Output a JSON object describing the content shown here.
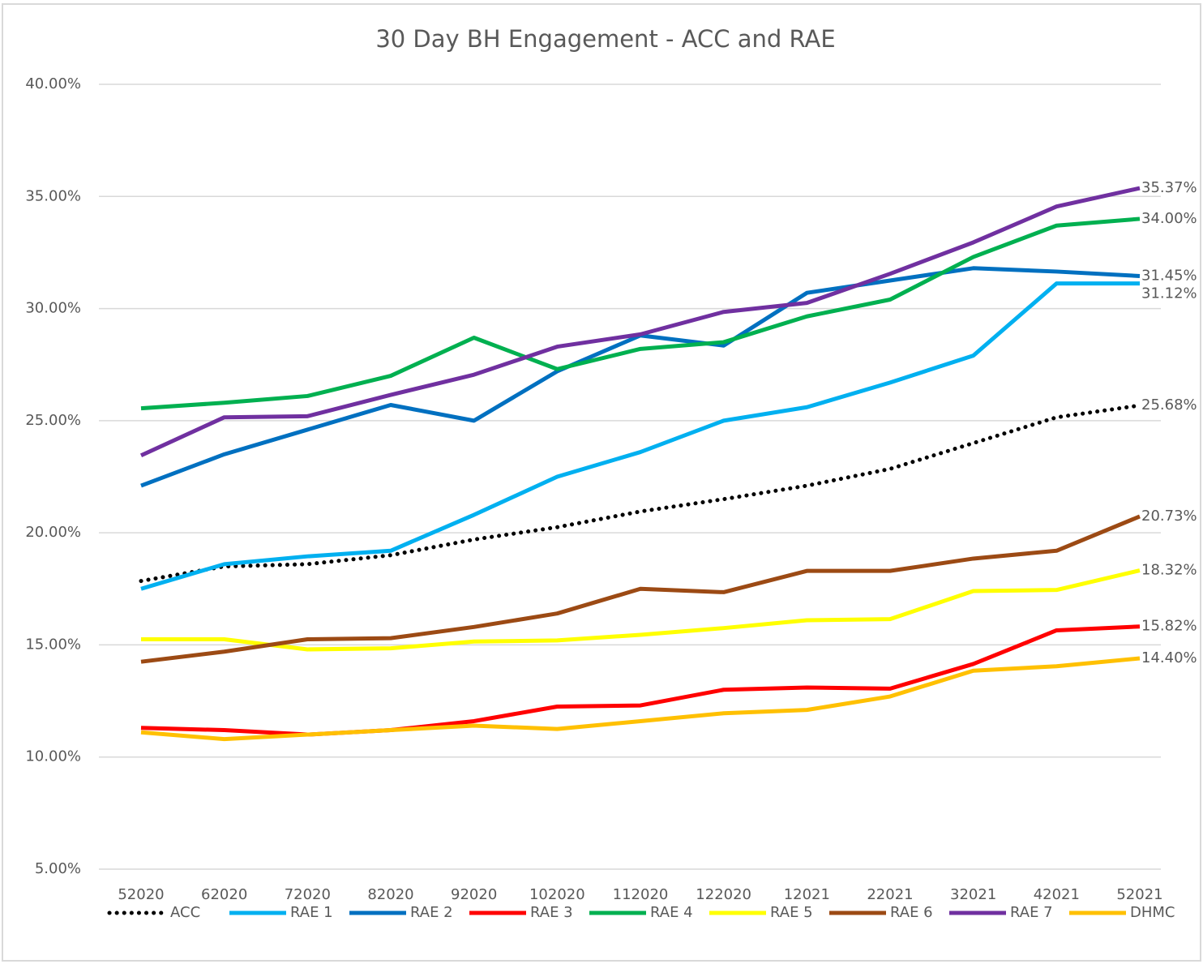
{
  "chart_data": {
    "type": "line",
    "title": "30 Day BH Engagement - ACC and RAE",
    "categories": [
      "52020",
      "62020",
      "72020",
      "82020",
      "92020",
      "102020",
      "112020",
      "122020",
      "12021",
      "22021",
      "32021",
      "42021",
      "52021"
    ],
    "ylim": [
      5,
      40
    ],
    "yticks": [
      {
        "value": 5,
        "label": "5.00%"
      },
      {
        "value": 10,
        "label": "10.00%"
      },
      {
        "value": 15,
        "label": "15.00%"
      },
      {
        "value": 20,
        "label": "20.00%"
      },
      {
        "value": 25,
        "label": "25.00%"
      },
      {
        "value": 30,
        "label": "30.00%"
      },
      {
        "value": 35,
        "label": "35.00%"
      },
      {
        "value": 40,
        "label": "40.00%"
      }
    ],
    "grid": true,
    "legend": "bottom",
    "series": [
      {
        "name": "ACC",
        "color": "#000000",
        "style": "dotted",
        "values": [
          17.85,
          18.5,
          18.6,
          19.0,
          19.7,
          20.25,
          20.95,
          21.5,
          22.1,
          22.85,
          24.0,
          25.15,
          25.68
        ],
        "value_labels": [
          null,
          null,
          null,
          null,
          null,
          null,
          null,
          null,
          null,
          null,
          null,
          null,
          "25.68%"
        ]
      },
      {
        "name": "RAE 1",
        "color": "#00b0f0",
        "values": [
          17.5,
          18.6,
          18.95,
          19.2,
          20.8,
          22.5,
          23.6,
          25.0,
          25.6,
          26.7,
          27.9,
          31.12,
          31.12
        ],
        "value_labels": [
          null,
          null,
          null,
          null,
          null,
          null,
          null,
          null,
          null,
          null,
          null,
          null,
          "31.12%"
        ]
      },
      {
        "name": "RAE 2",
        "color": "#0070c0",
        "values": [
          22.1,
          23.5,
          24.6,
          25.7,
          25.0,
          27.2,
          28.8,
          28.35,
          30.7,
          31.25,
          31.8,
          31.65,
          31.45
        ],
        "value_labels": [
          null,
          null,
          null,
          null,
          null,
          null,
          null,
          null,
          null,
          null,
          null,
          null,
          "31.45%"
        ]
      },
      {
        "name": "RAE 3",
        "color": "#ff0000",
        "values": [
          11.3,
          11.2,
          11.0,
          11.2,
          11.6,
          12.25,
          12.3,
          13.0,
          13.1,
          13.05,
          14.15,
          15.65,
          15.82
        ],
        "value_labels": [
          null,
          null,
          null,
          null,
          null,
          null,
          null,
          null,
          null,
          null,
          null,
          null,
          "15.82%"
        ]
      },
      {
        "name": "RAE 4",
        "color": "#00b050",
        "values": [
          25.55,
          25.8,
          26.1,
          27.0,
          28.7,
          27.3,
          28.2,
          28.5,
          29.65,
          30.4,
          32.3,
          33.7,
          34.0
        ],
        "value_labels": [
          null,
          null,
          null,
          null,
          null,
          null,
          null,
          null,
          null,
          null,
          null,
          null,
          "34.00%"
        ]
      },
      {
        "name": "RAE 5",
        "color": "#ffff00",
        "values": [
          15.25,
          15.25,
          14.8,
          14.85,
          15.15,
          15.2,
          15.45,
          15.75,
          16.1,
          16.15,
          17.4,
          17.45,
          18.32
        ],
        "value_labels": [
          null,
          null,
          null,
          null,
          null,
          null,
          null,
          null,
          null,
          null,
          null,
          null,
          "18.32%"
        ]
      },
      {
        "name": "RAE 6",
        "color": "#9c4a14",
        "values": [
          14.25,
          14.7,
          15.25,
          15.3,
          15.8,
          16.4,
          17.5,
          17.35,
          18.3,
          18.3,
          18.85,
          19.2,
          20.73
        ],
        "value_labels": [
          null,
          null,
          null,
          null,
          null,
          null,
          null,
          null,
          null,
          null,
          null,
          null,
          "20.73%"
        ]
      },
      {
        "name": "RAE 7",
        "color": "#7030a0",
        "values": [
          23.45,
          25.15,
          25.2,
          26.15,
          27.05,
          28.3,
          28.85,
          29.85,
          30.25,
          31.55,
          32.95,
          34.55,
          35.37
        ],
        "value_labels": [
          null,
          null,
          null,
          null,
          null,
          null,
          null,
          null,
          null,
          null,
          null,
          null,
          "35.37%"
        ]
      },
      {
        "name": "DHMC",
        "color": "#ffc000",
        "values": [
          11.1,
          10.8,
          11.0,
          11.2,
          11.4,
          11.25,
          11.6,
          11.95,
          12.1,
          12.7,
          13.85,
          14.05,
          14.4
        ],
        "value_labels": [
          null,
          null,
          null,
          null,
          null,
          null,
          null,
          null,
          null,
          null,
          null,
          null,
          "14.40%"
        ]
      }
    ]
  }
}
